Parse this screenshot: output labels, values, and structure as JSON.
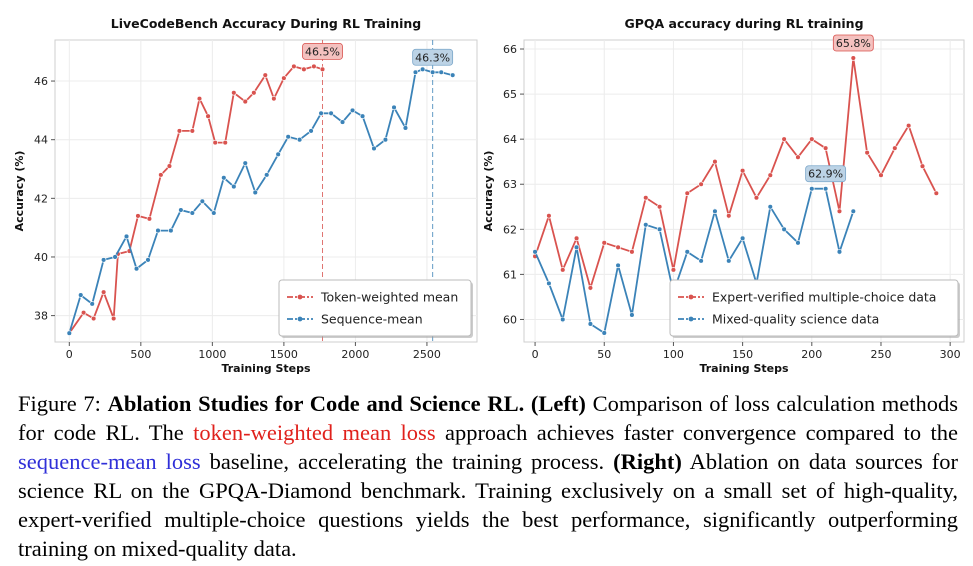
{
  "chart_data": [
    {
      "type": "line",
      "title": "LiveCodeBench Accuracy During RL Training",
      "xlabel": "Training Steps",
      "ylabel": "Accuracy (%)",
      "xlim": [
        -100,
        2850
      ],
      "ylim": [
        37.1,
        47.4
      ],
      "xticks": [
        0,
        500,
        1000,
        1500,
        2000,
        2500
      ],
      "yticks": [
        38,
        40,
        42,
        44,
        46
      ],
      "grid": true,
      "legend_position": "lower-right",
      "series": [
        {
          "name": "Token-weighted mean",
          "color": "#d9534f",
          "x": [
            0,
            100,
            170,
            240,
            310,
            340,
            420,
            480,
            560,
            640,
            700,
            770,
            860,
            910,
            970,
            1020,
            1090,
            1150,
            1230,
            1290,
            1370,
            1430,
            1500,
            1570,
            1640,
            1710,
            1770
          ],
          "y": [
            37.4,
            38.1,
            37.9,
            38.8,
            37.9,
            40.1,
            40.2,
            41.4,
            41.3,
            42.8,
            43.1,
            44.3,
            44.3,
            45.4,
            44.8,
            43.9,
            43.9,
            45.6,
            45.3,
            45.6,
            46.2,
            45.4,
            46.1,
            46.5,
            46.4,
            46.5,
            46.4
          ]
        },
        {
          "name": "Sequence-mean",
          "color": "#3b83b8",
          "x": [
            0,
            80,
            160,
            240,
            320,
            400,
            470,
            550,
            620,
            710,
            780,
            860,
            930,
            1010,
            1080,
            1150,
            1230,
            1300,
            1380,
            1460,
            1530,
            1610,
            1690,
            1760,
            1830,
            1910,
            1980,
            2050,
            2130,
            2210,
            2270,
            2350,
            2420,
            2470,
            2540,
            2600,
            2680
          ],
          "y": [
            37.4,
            38.7,
            38.4,
            39.9,
            40.0,
            40.7,
            39.6,
            39.9,
            40.9,
            40.9,
            41.6,
            41.5,
            41.9,
            41.5,
            42.7,
            42.4,
            43.2,
            42.2,
            42.8,
            43.5,
            44.1,
            44.0,
            44.3,
            44.9,
            44.9,
            44.6,
            45.0,
            44.8,
            43.7,
            44.0,
            45.1,
            44.4,
            46.3,
            46.4,
            46.3,
            46.3,
            46.2
          ]
        }
      ],
      "annotations": [
        {
          "label": "46.5%",
          "x": 1770,
          "y": 46.5,
          "color": "#d9534f"
        },
        {
          "label": "46.3%",
          "x": 2540,
          "y": 46.3,
          "color": "#3b83b8"
        }
      ]
    },
    {
      "type": "line",
      "title": "GPQA accuracy during RL training",
      "xlabel": "Training Steps",
      "ylabel": "Accuracy (%)",
      "xlim": [
        -8,
        310
      ],
      "ylim": [
        59.5,
        66.2
      ],
      "xticks": [
        0,
        50,
        100,
        150,
        200,
        250,
        300
      ],
      "yticks": [
        60,
        61,
        62,
        63,
        64,
        65,
        66
      ],
      "grid": true,
      "legend_position": "lower-right",
      "series": [
        {
          "name": "Expert-verified multiple-choice data",
          "color": "#d9534f",
          "x": [
            0,
            10,
            20,
            30,
            40,
            50,
            60,
            70,
            80,
            90,
            100,
            110,
            120,
            130,
            140,
            150,
            160,
            170,
            180,
            190,
            200,
            210,
            220,
            230,
            240,
            250,
            260,
            270,
            280,
            290
          ],
          "y": [
            61.4,
            62.3,
            61.1,
            61.8,
            60.7,
            61.7,
            61.6,
            61.5,
            62.7,
            62.5,
            61.1,
            62.8,
            63.0,
            63.5,
            62.3,
            63.3,
            62.7,
            63.2,
            64.0,
            63.6,
            64.0,
            63.8,
            62.4,
            65.8,
            63.7,
            63.2,
            63.8,
            64.3,
            63.4,
            62.8
          ]
        },
        {
          "name": "Mixed-quality science data",
          "color": "#3b83b8",
          "x": [
            0,
            10,
            20,
            30,
            40,
            50,
            60,
            70,
            80,
            90,
            100,
            110,
            120,
            130,
            140,
            150,
            160,
            170,
            180,
            190,
            200,
            210,
            220,
            230
          ],
          "y": [
            61.5,
            60.8,
            60.0,
            61.6,
            59.9,
            59.7,
            61.2,
            60.1,
            62.1,
            62.0,
            60.6,
            61.5,
            61.3,
            62.4,
            61.3,
            61.8,
            60.8,
            62.5,
            62.0,
            61.7,
            62.9,
            62.9,
            61.5,
            62.4
          ]
        }
      ],
      "annotations": [
        {
          "label": "65.8%",
          "x": 230,
          "y": 65.8,
          "color": "#d9534f"
        },
        {
          "label": "62.9%",
          "x": 210,
          "y": 62.9,
          "color": "#3b83b8"
        }
      ]
    }
  ],
  "caption": {
    "figure_label": "Figure 7:",
    "bold_title": "Ablation Studies for Code and Science RL.",
    "left_label": "(Left)",
    "text_1": "Comparison of loss calculation methods for code RL. The",
    "red_term": "token-weighted mean loss",
    "text_2": "approach achieves faster convergence compared to the",
    "blue_term": "sequence-mean loss",
    "text_3": "baseline, accelerating the training process.",
    "right_label": "(Right)",
    "text_4": "Ablation on data sources for science RL on the GPQA-Diamond benchmark. Training exclusively on a small set of high-quality, expert-verified multiple-choice questions yields the best performance, significantly outperforming training on mixed-quality data."
  }
}
